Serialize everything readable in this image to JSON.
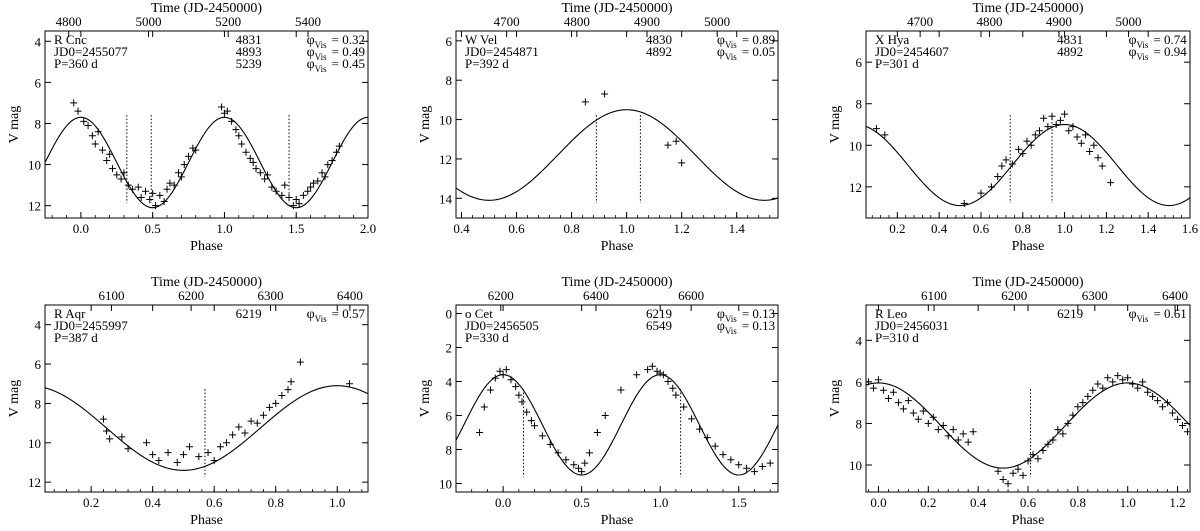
{
  "figure": {
    "common_labels": {
      "top_axis_title": "Time (JD-2450000)",
      "x_axis_title": "Phase",
      "y_axis_title": "V mag"
    }
  },
  "chart_data": [
    {
      "type": "scatter",
      "star": "R Cnc",
      "jd0_label": "JD0=2455077",
      "period_label": "P=360 d",
      "epochs": [
        {
          "jd": "4831",
          "phi": "= 0.32"
        },
        {
          "jd": "4893",
          "phi": "= 0.49"
        },
        {
          "jd": "5239",
          "phi": "= 0.45"
        }
      ],
      "xlabel": "Phase",
      "ylabel": "V mag",
      "top_label": "Time (JD-2450000)",
      "xlim": [
        -0.25,
        2.0
      ],
      "ylim": [
        12.6,
        3.5
      ],
      "xticks": [
        0.0,
        0.5,
        1.0,
        1.5,
        2.0
      ],
      "xtick_labels": [
        "0.0",
        "0.5",
        "1.0",
        "1.5",
        "2.0"
      ],
      "yticks": [
        4,
        6,
        8,
        10,
        12
      ],
      "ytick_labels": [
        "4",
        "6",
        "8",
        "10",
        "12"
      ],
      "top_ticks": [
        "4800",
        "5000",
        "5200",
        "5400"
      ],
      "top_tick_phases": [
        -0.085,
        0.471,
        1.026,
        1.582
      ],
      "markers": [
        0.32,
        0.49,
        1.45
      ],
      "model": {
        "mean": 9.9,
        "amp": 2.2,
        "phase0": 0.0
      },
      "points": [
        [
          -0.05,
          7.0
        ],
        [
          -0.02,
          7.4
        ],
        [
          0.02,
          7.9
        ],
        [
          0.05,
          8.1
        ],
        [
          0.08,
          8.6
        ],
        [
          0.1,
          9.0
        ],
        [
          0.12,
          8.4
        ],
        [
          0.15,
          9.3
        ],
        [
          0.18,
          9.8
        ],
        [
          0.2,
          9.5
        ],
        [
          0.22,
          10.2
        ],
        [
          0.25,
          10.5
        ],
        [
          0.28,
          10.7
        ],
        [
          0.3,
          10.4
        ],
        [
          0.33,
          11.0
        ],
        [
          0.36,
          11.2
        ],
        [
          0.4,
          11.1
        ],
        [
          0.42,
          11.6
        ],
        [
          0.45,
          11.3
        ],
        [
          0.48,
          11.7
        ],
        [
          0.5,
          11.4
        ],
        [
          0.52,
          12.0
        ],
        [
          0.55,
          11.5
        ],
        [
          0.58,
          11.8
        ],
        [
          0.6,
          11.2
        ],
        [
          0.62,
          10.9
        ],
        [
          0.65,
          11.0
        ],
        [
          0.68,
          10.4
        ],
        [
          0.7,
          10.6
        ],
        [
          0.72,
          10.0
        ],
        [
          0.75,
          9.6
        ],
        [
          0.78,
          9.2
        ],
        [
          0.8,
          9.3
        ],
        [
          0.98,
          7.2
        ],
        [
          1.0,
          7.5
        ],
        [
          1.02,
          7.4
        ],
        [
          1.05,
          7.9
        ],
        [
          1.08,
          8.3
        ],
        [
          1.1,
          8.6
        ],
        [
          1.12,
          9.0
        ],
        [
          1.15,
          9.4
        ],
        [
          1.18,
          9.7
        ],
        [
          1.2,
          9.9
        ],
        [
          1.22,
          10.2
        ],
        [
          1.25,
          10.4
        ],
        [
          1.28,
          10.7
        ],
        [
          1.3,
          10.5
        ],
        [
          1.33,
          11.1
        ],
        [
          1.36,
          11.3
        ],
        [
          1.4,
          11.5
        ],
        [
          1.42,
          11.0
        ],
        [
          1.45,
          11.6
        ],
        [
          1.48,
          12.0
        ],
        [
          1.5,
          11.7
        ],
        [
          1.52,
          11.9
        ],
        [
          1.55,
          11.5
        ],
        [
          1.58,
          11.3
        ],
        [
          1.6,
          11.1
        ],
        [
          1.62,
          10.9
        ],
        [
          1.65,
          10.8
        ],
        [
          1.68,
          10.4
        ],
        [
          1.7,
          10.6
        ],
        [
          1.72,
          10.0
        ],
        [
          1.75,
          9.8
        ],
        [
          1.78,
          9.4
        ],
        [
          1.8,
          9.1
        ]
      ]
    },
    {
      "type": "scatter",
      "star": "W Vel",
      "jd0_label": "JD0=2454871",
      "period_label": "P=392 d",
      "epochs": [
        {
          "jd": "4830",
          "phi": "= 0.89"
        },
        {
          "jd": "4892",
          "phi": "= 0.05"
        }
      ],
      "xlabel": "Phase",
      "ylabel": "V mag",
      "top_label": "Time (JD-2450000)",
      "xlim": [
        0.38,
        1.55
      ],
      "ylim": [
        15.0,
        5.5
      ],
      "xticks": [
        0.4,
        0.6,
        0.8,
        1.0,
        1.2,
        1.4
      ],
      "xtick_labels": [
        "0.4",
        "0.6",
        "0.8",
        "1.0",
        "1.2",
        "1.4"
      ],
      "yticks": [
        6,
        8,
        10,
        12,
        14
      ],
      "ytick_labels": [
        "6",
        "8",
        "10",
        "12",
        "14"
      ],
      "top_ticks": [
        "4700",
        "4800",
        "4900",
        "5000"
      ],
      "top_tick_phases": [
        0.564,
        0.819,
        1.074,
        1.329
      ],
      "markers": [
        0.89,
        1.05
      ],
      "model": {
        "mean": 11.8,
        "amp": 2.3,
        "phase0": 0.0
      },
      "points": [
        [
          0.85,
          9.1
        ],
        [
          0.92,
          8.7
        ],
        [
          1.15,
          11.3
        ],
        [
          1.18,
          11.1
        ],
        [
          1.2,
          12.2
        ]
      ]
    },
    {
      "type": "scatter",
      "star": "X Hya",
      "jd0_label": "JD0=2454607",
      "period_label": "P=301 d",
      "epochs": [
        {
          "jd": "4831",
          "phi": "= 0.74"
        },
        {
          "jd": "4892",
          "phi": "= 0.94"
        }
      ],
      "xlabel": "Phase",
      "ylabel": "V mag",
      "top_label": "Time (JD-2450000)",
      "xlim": [
        0.05,
        1.6
      ],
      "ylim": [
        13.5,
        4.5
      ],
      "xticks": [
        0.2,
        0.4,
        0.6,
        0.8,
        1.0,
        1.2,
        1.4,
        1.6
      ],
      "xtick_labels": [
        "0.2",
        "0.4",
        "0.6",
        "0.8",
        "1.0",
        "1.2",
        "1.4",
        "1.6"
      ],
      "yticks": [
        6,
        8,
        10,
        12
      ],
      "ytick_labels": [
        "6",
        "8",
        "10",
        "12"
      ],
      "top_ticks": [
        "4700",
        "4800",
        "4900",
        "5000"
      ],
      "top_tick_phases": [
        0.309,
        0.641,
        0.973,
        1.306
      ],
      "markers": [
        0.74,
        0.94
      ],
      "model": {
        "mean": 10.95,
        "amp": 1.95,
        "phase0": 0.0
      },
      "points": [
        [
          0.1,
          9.2
        ],
        [
          0.14,
          9.5
        ],
        [
          0.52,
          12.8
        ],
        [
          0.6,
          12.3
        ],
        [
          0.65,
          12.0
        ],
        [
          0.68,
          11.5
        ],
        [
          0.7,
          11.0
        ],
        [
          0.72,
          10.7
        ],
        [
          0.75,
          10.9
        ],
        [
          0.78,
          10.2
        ],
        [
          0.8,
          10.4
        ],
        [
          0.82,
          9.8
        ],
        [
          0.84,
          10.0
        ],
        [
          0.86,
          9.5
        ],
        [
          0.88,
          9.3
        ],
        [
          0.9,
          8.7
        ],
        [
          0.92,
          9.1
        ],
        [
          0.94,
          8.6
        ],
        [
          0.96,
          9.0
        ],
        [
          0.98,
          8.8
        ],
        [
          1.0,
          8.5
        ],
        [
          1.02,
          9.3
        ],
        [
          1.04,
          9.1
        ],
        [
          1.06,
          9.6
        ],
        [
          1.08,
          9.9
        ],
        [
          1.1,
          9.5
        ],
        [
          1.12,
          10.3
        ],
        [
          1.14,
          10.0
        ],
        [
          1.16,
          10.6
        ],
        [
          1.18,
          11.0
        ],
        [
          1.22,
          11.8
        ]
      ]
    },
    {
      "type": "scatter",
      "star": "R Aqr",
      "jd0_label": "JD0=2455997",
      "period_label": "P=387 d",
      "epochs": [
        {
          "jd": "6219",
          "phi": "= 0.57"
        }
      ],
      "xlabel": "Phase",
      "ylabel": "V mag",
      "top_label": "Time (JD-2450000)",
      "xlim": [
        0.05,
        1.1
      ],
      "ylim": [
        12.5,
        3.0
      ],
      "xticks": [
        0.2,
        0.4,
        0.6,
        0.8,
        1.0
      ],
      "xtick_labels": [
        "0.2",
        "0.4",
        "0.6",
        "0.8",
        "1.0"
      ],
      "yticks": [
        4,
        6,
        8,
        10,
        12
      ],
      "ytick_labels": [
        "4",
        "6",
        "8",
        "10",
        "12"
      ],
      "top_ticks": [
        "6100",
        "6200",
        "6300",
        "6400"
      ],
      "top_tick_phases": [
        0.266,
        0.525,
        0.783,
        1.041
      ],
      "markers": [
        0.57
      ],
      "model": {
        "mean": 9.25,
        "amp": 2.15,
        "phase0": 0.0
      },
      "points": [
        [
          0.24,
          8.8
        ],
        [
          0.25,
          9.4
        ],
        [
          0.26,
          9.8
        ],
        [
          0.3,
          9.7
        ],
        [
          0.32,
          10.3
        ],
        [
          0.38,
          10.0
        ],
        [
          0.4,
          10.6
        ],
        [
          0.42,
          10.9
        ],
        [
          0.45,
          10.5
        ],
        [
          0.48,
          11.0
        ],
        [
          0.5,
          10.6
        ],
        [
          0.52,
          10.2
        ],
        [
          0.55,
          10.7
        ],
        [
          0.58,
          10.5
        ],
        [
          0.6,
          10.9
        ],
        [
          0.62,
          10.2
        ],
        [
          0.64,
          10.0
        ],
        [
          0.66,
          9.6
        ],
        [
          0.68,
          9.2
        ],
        [
          0.7,
          9.5
        ],
        [
          0.72,
          8.9
        ],
        [
          0.74,
          9.0
        ],
        [
          0.76,
          8.6
        ],
        [
          0.78,
          8.2
        ],
        [
          0.8,
          8.0
        ],
        [
          0.82,
          7.6
        ],
        [
          0.84,
          7.3
        ],
        [
          0.85,
          6.9
        ],
        [
          0.88,
          5.9
        ],
        [
          1.04,
          7.0
        ]
      ]
    },
    {
      "type": "scatter",
      "star": "o Cet",
      "jd0_label": "JD0=2456505",
      "period_label": "P=330 d",
      "epochs": [
        {
          "jd": "6219",
          "phi": "= 0.13"
        },
        {
          "jd": "6549",
          "phi": "= 0.13"
        }
      ],
      "xlabel": "Phase",
      "ylabel": "V mag",
      "top_label": "Time (JD-2450000)",
      "xlim": [
        -0.3,
        1.75
      ],
      "ylim": [
        10.5,
        -0.5
      ],
      "xticks": [
        0.0,
        0.5,
        1.0,
        1.5
      ],
      "xtick_labels": [
        "0.0",
        "0.5",
        "1.0",
        "1.5"
      ],
      "yticks": [
        0,
        2,
        4,
        6,
        8,
        10
      ],
      "ytick_labels": [
        "0",
        "2",
        "4",
        "6",
        "8",
        "10"
      ],
      "top_ticks": [
        "6200",
        "6400",
        "6600"
      ],
      "top_tick_phases": [
        -0.015,
        0.591,
        1.197
      ],
      "markers": [
        0.13,
        1.13
      ],
      "model": {
        "mean": 6.55,
        "amp": 2.95,
        "phase0": 0.0
      },
      "points": [
        [
          -0.15,
          7.0
        ],
        [
          -0.12,
          5.5
        ],
        [
          -0.08,
          4.5
        ],
        [
          -0.05,
          3.8
        ],
        [
          -0.02,
          3.4
        ],
        [
          0.0,
          3.6
        ],
        [
          0.02,
          3.3
        ],
        [
          0.05,
          3.9
        ],
        [
          0.08,
          4.3
        ],
        [
          0.1,
          4.8
        ],
        [
          0.12,
          5.2
        ],
        [
          0.15,
          5.8
        ],
        [
          0.18,
          6.3
        ],
        [
          0.2,
          6.6
        ],
        [
          0.25,
          7.2
        ],
        [
          0.3,
          7.7
        ],
        [
          0.35,
          8.2
        ],
        [
          0.4,
          8.6
        ],
        [
          0.45,
          8.9
        ],
        [
          0.48,
          9.1
        ],
        [
          0.5,
          9.3
        ],
        [
          0.52,
          8.8
        ],
        [
          0.55,
          8.2
        ],
        [
          0.6,
          7.0
        ],
        [
          0.65,
          6.0
        ],
        [
          0.75,
          4.5
        ],
        [
          0.85,
          3.6
        ],
        [
          0.92,
          3.3
        ],
        [
          0.95,
          3.1
        ],
        [
          0.98,
          3.4
        ],
        [
          1.0,
          3.5
        ],
        [
          1.02,
          3.6
        ],
        [
          1.05,
          4.0
        ],
        [
          1.08,
          4.4
        ],
        [
          1.1,
          4.8
        ],
        [
          1.15,
          5.5
        ],
        [
          1.2,
          6.2
        ],
        [
          1.25,
          6.8
        ],
        [
          1.3,
          7.3
        ],
        [
          1.35,
          7.8
        ],
        [
          1.4,
          8.3
        ],
        [
          1.45,
          8.6
        ],
        [
          1.5,
          8.9
        ],
        [
          1.55,
          9.1
        ],
        [
          1.6,
          9.3
        ],
        [
          1.65,
          9.0
        ],
        [
          1.7,
          8.8
        ]
      ]
    },
    {
      "type": "scatter",
      "star": "R Leo",
      "jd0_label": "JD0=2456031",
      "period_label": "P=310 d",
      "epochs": [
        {
          "jd": "6219",
          "phi": "= 0.61"
        }
      ],
      "xlabel": "Phase",
      "ylabel": "V mag",
      "top_label": "Time (JD-2450000)",
      "xlim": [
        -0.05,
        1.25
      ],
      "ylim": [
        11.3,
        2.3
      ],
      "xticks": [
        0.0,
        0.2,
        0.4,
        0.6,
        0.8,
        1.0,
        1.2
      ],
      "xtick_labels": [
        "0.0",
        "0.2",
        "0.4",
        "0.6",
        "0.8",
        "1.0",
        "1.2"
      ],
      "yticks": [
        4,
        6,
        8,
        10
      ],
      "ytick_labels": [
        "4",
        "6",
        "8",
        "10"
      ],
      "top_ticks": [
        "6100",
        "6200",
        "6300",
        "6400"
      ],
      "top_tick_phases": [
        0.223,
        0.545,
        0.868,
        1.19
      ],
      "markers": [
        0.61
      ],
      "model": {
        "mean": 8.1,
        "amp": 2.05,
        "phase0": 0.0
      },
      "points": [
        [
          -0.04,
          6.0
        ],
        [
          -0.02,
          6.3
        ],
        [
          0.0,
          5.9
        ],
        [
          0.02,
          6.4
        ],
        [
          0.04,
          6.8
        ],
        [
          0.06,
          6.5
        ],
        [
          0.08,
          7.0
        ],
        [
          0.1,
          7.3
        ],
        [
          0.12,
          6.9
        ],
        [
          0.14,
          7.5
        ],
        [
          0.16,
          7.8
        ],
        [
          0.18,
          7.4
        ],
        [
          0.2,
          8.0
        ],
        [
          0.22,
          7.7
        ],
        [
          0.24,
          8.3
        ],
        [
          0.26,
          8.1
        ],
        [
          0.28,
          8.6
        ],
        [
          0.3,
          8.3
        ],
        [
          0.32,
          8.8
        ],
        [
          0.34,
          8.5
        ],
        [
          0.36,
          8.9
        ],
        [
          0.38,
          8.4
        ],
        [
          0.48,
          10.3
        ],
        [
          0.5,
          10.7
        ],
        [
          0.52,
          10.9
        ],
        [
          0.54,
          10.4
        ],
        [
          0.56,
          10.2
        ],
        [
          0.58,
          10.5
        ],
        [
          0.6,
          9.8
        ],
        [
          0.62,
          9.5
        ],
        [
          0.64,
          9.7
        ],
        [
          0.66,
          9.3
        ],
        [
          0.68,
          9.0
        ],
        [
          0.7,
          8.8
        ],
        [
          0.72,
          8.3
        ],
        [
          0.74,
          8.5
        ],
        [
          0.76,
          8.0
        ],
        [
          0.78,
          7.6
        ],
        [
          0.8,
          7.2
        ],
        [
          0.82,
          7.0
        ],
        [
          0.84,
          6.7
        ],
        [
          0.86,
          6.4
        ],
        [
          0.88,
          6.1
        ],
        [
          0.9,
          6.3
        ],
        [
          0.92,
          5.8
        ],
        [
          0.94,
          6.0
        ],
        [
          0.96,
          5.7
        ],
        [
          0.98,
          5.9
        ],
        [
          1.0,
          5.8
        ],
        [
          1.02,
          6.1
        ],
        [
          1.04,
          6.3
        ],
        [
          1.06,
          6.0
        ],
        [
          1.08,
          6.5
        ],
        [
          1.1,
          6.7
        ],
        [
          1.12,
          6.9
        ],
        [
          1.14,
          7.2
        ],
        [
          1.16,
          7.0
        ],
        [
          1.18,
          7.5
        ],
        [
          1.2,
          7.8
        ],
        [
          1.22,
          8.1
        ],
        [
          1.24,
          8.4
        ]
      ]
    }
  ]
}
